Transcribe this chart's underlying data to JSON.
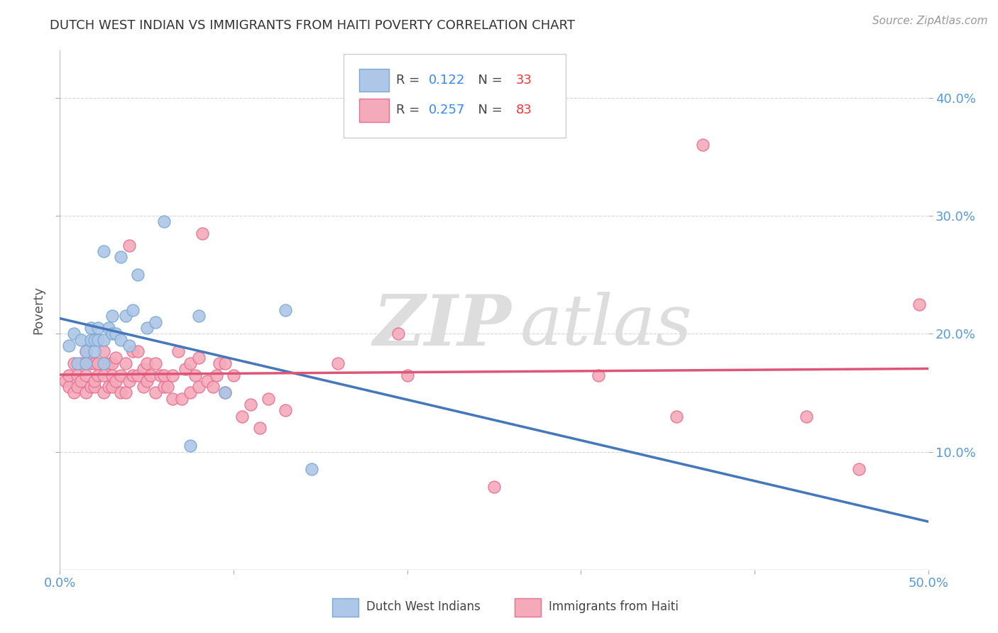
{
  "title": "DUTCH WEST INDIAN VS IMMIGRANTS FROM HAITI POVERTY CORRELATION CHART",
  "source": "Source: ZipAtlas.com",
  "ylabel": "Poverty",
  "xlim": [
    0.0,
    0.5
  ],
  "ylim": [
    0.0,
    0.44
  ],
  "xticks": [
    0.0,
    0.1,
    0.2,
    0.3,
    0.4,
    0.5
  ],
  "yticks": [
    0.1,
    0.2,
    0.3,
    0.4
  ],
  "xticklabels": [
    "0.0%",
    "",
    "",
    "",
    "",
    "50.0%"
  ],
  "yticklabels": [
    "10.0%",
    "20.0%",
    "30.0%",
    "40.0%"
  ],
  "legend1_r": "0.122",
  "legend1_n": "33",
  "legend2_r": "0.257",
  "legend2_n": "83",
  "blue_color": "#AEC6E8",
  "pink_color": "#F4AABA",
  "blue_edge_color": "#7AAAD0",
  "pink_edge_color": "#E87090",
  "blue_line_color": "#4477BB",
  "pink_line_color": "#DD5577",
  "grid_color": "#CCCCCC",
  "tick_color": "#5599DD",
  "background_color": "#FFFFFF",
  "watermark_color": "#DDDDDD",
  "blue_x": [
    0.005,
    0.008,
    0.01,
    0.012,
    0.015,
    0.015,
    0.018,
    0.018,
    0.02,
    0.02,
    0.022,
    0.022,
    0.025,
    0.025,
    0.025,
    0.028,
    0.03,
    0.03,
    0.032,
    0.035,
    0.035,
    0.038,
    0.04,
    0.042,
    0.045,
    0.05,
    0.055,
    0.06,
    0.075,
    0.08,
    0.095,
    0.13,
    0.145
  ],
  "blue_y": [
    0.19,
    0.2,
    0.175,
    0.195,
    0.175,
    0.185,
    0.195,
    0.205,
    0.185,
    0.195,
    0.195,
    0.205,
    0.175,
    0.195,
    0.27,
    0.205,
    0.2,
    0.215,
    0.2,
    0.195,
    0.265,
    0.215,
    0.19,
    0.22,
    0.25,
    0.205,
    0.21,
    0.295,
    0.105,
    0.215,
    0.15,
    0.22,
    0.085
  ],
  "pink_x": [
    0.003,
    0.005,
    0.005,
    0.008,
    0.008,
    0.01,
    0.01,
    0.012,
    0.012,
    0.015,
    0.015,
    0.015,
    0.018,
    0.018,
    0.02,
    0.02,
    0.02,
    0.022,
    0.022,
    0.025,
    0.025,
    0.025,
    0.028,
    0.028,
    0.03,
    0.03,
    0.03,
    0.032,
    0.032,
    0.035,
    0.035,
    0.038,
    0.038,
    0.04,
    0.04,
    0.042,
    0.042,
    0.045,
    0.045,
    0.048,
    0.048,
    0.05,
    0.05,
    0.052,
    0.055,
    0.055,
    0.058,
    0.06,
    0.06,
    0.062,
    0.065,
    0.065,
    0.068,
    0.07,
    0.072,
    0.075,
    0.075,
    0.078,
    0.08,
    0.08,
    0.082,
    0.085,
    0.088,
    0.09,
    0.092,
    0.095,
    0.095,
    0.1,
    0.105,
    0.11,
    0.115,
    0.12,
    0.13,
    0.16,
    0.195,
    0.2,
    0.25,
    0.31,
    0.355,
    0.37,
    0.43,
    0.46,
    0.495
  ],
  "pink_y": [
    0.16,
    0.155,
    0.165,
    0.15,
    0.175,
    0.155,
    0.165,
    0.16,
    0.175,
    0.15,
    0.165,
    0.185,
    0.155,
    0.175,
    0.155,
    0.16,
    0.175,
    0.165,
    0.175,
    0.15,
    0.165,
    0.185,
    0.155,
    0.175,
    0.155,
    0.165,
    0.175,
    0.16,
    0.18,
    0.15,
    0.165,
    0.15,
    0.175,
    0.16,
    0.275,
    0.165,
    0.185,
    0.165,
    0.185,
    0.155,
    0.17,
    0.16,
    0.175,
    0.165,
    0.15,
    0.175,
    0.165,
    0.155,
    0.165,
    0.155,
    0.145,
    0.165,
    0.185,
    0.145,
    0.17,
    0.15,
    0.175,
    0.165,
    0.155,
    0.18,
    0.285,
    0.16,
    0.155,
    0.165,
    0.175,
    0.15,
    0.175,
    0.165,
    0.13,
    0.14,
    0.12,
    0.145,
    0.135,
    0.175,
    0.2,
    0.165,
    0.07,
    0.165,
    0.13,
    0.36,
    0.13,
    0.085,
    0.225
  ]
}
